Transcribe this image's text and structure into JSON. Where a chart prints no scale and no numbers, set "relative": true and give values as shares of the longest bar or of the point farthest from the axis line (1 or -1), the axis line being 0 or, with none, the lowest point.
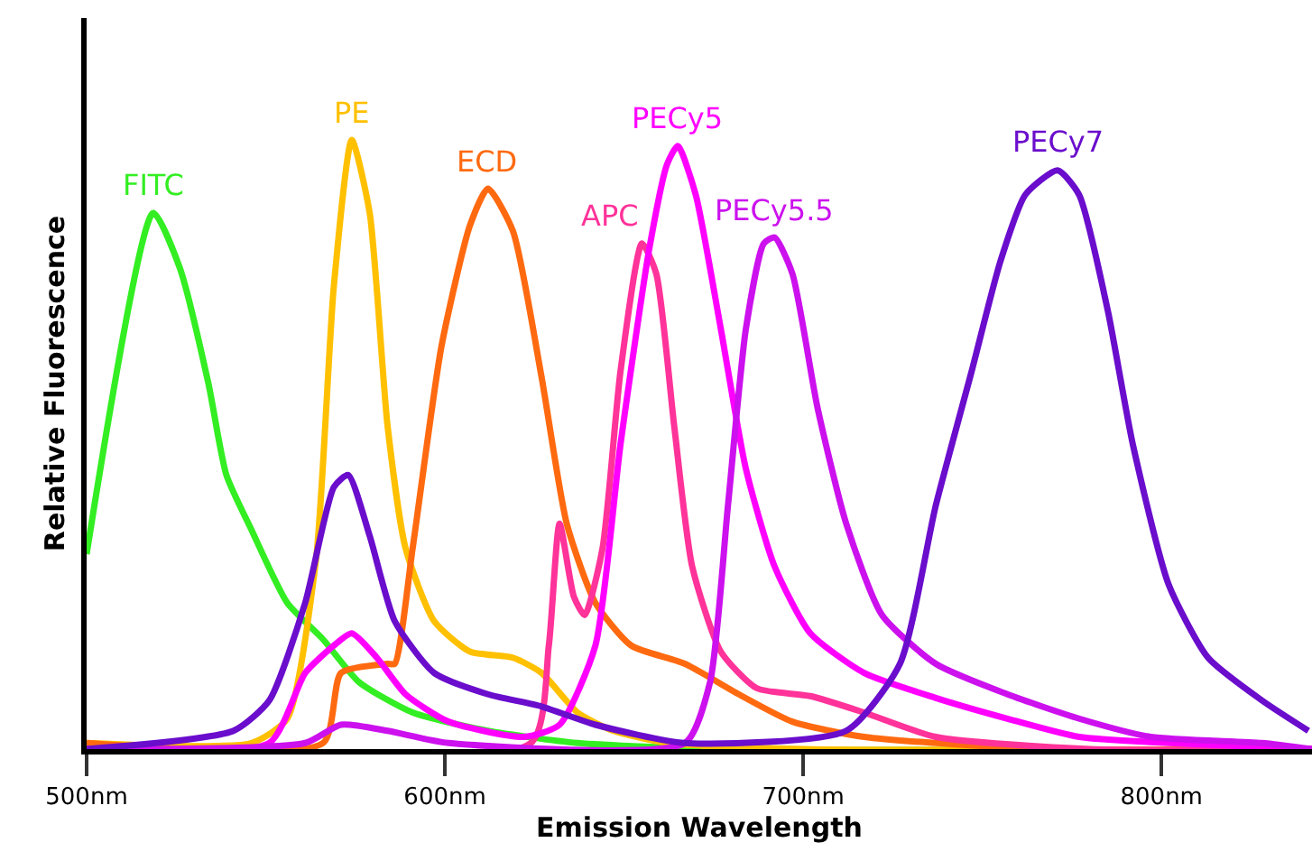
{
  "chart_data": {
    "type": "line",
    "relative": true,
    "xlabel": "Emission Wavelength",
    "ylabel": "Relative Fluorescence",
    "xlim": [
      500,
      842
    ],
    "xticks": [
      {
        "value": 500,
        "label": "500nm"
      },
      {
        "value": 600,
        "label": "600nm"
      },
      {
        "value": 700,
        "label": "700nm"
      },
      {
        "value": 800,
        "label": "800nm"
      }
    ],
    "grid": false,
    "legend": false,
    "marker": "none",
    "line_style": "solid",
    "series": [
      {
        "name": "FITC",
        "color": "#33ee22",
        "x": [
          500,
          518.6,
          526,
          534,
          539,
          546,
          556,
          566,
          576,
          591,
          612,
          637,
          677,
          842
        ],
        "values": [
          0.32,
          0.88,
          0.79,
          0.6,
          0.45,
          0.36,
          0.24,
          0.18,
          0.11,
          0.06,
          0.03,
          0.01,
          0,
          0
        ]
      },
      {
        "name": "PE",
        "color": "#ffc000",
        "x": [
          500,
          546,
          556,
          564,
          569,
          574,
          579,
          584,
          589,
          597,
          607,
          619,
          627,
          637,
          647,
          662,
          700,
          842
        ],
        "values": [
          0.01,
          0.01,
          0.05,
          0.31,
          0.76,
          1.0,
          0.88,
          0.53,
          0.33,
          0.21,
          0.16,
          0.15,
          0.125,
          0.06,
          0.03,
          0.01,
          0,
          0
        ]
      },
      {
        "name": "ECD",
        "color": "#ff6a10",
        "x": [
          500,
          566,
          571,
          584,
          586,
          591,
          599,
          607,
          612,
          619,
          627,
          634,
          642,
          652,
          667,
          682,
          697,
          717,
          767,
          842
        ],
        "values": [
          0.01,
          0.01,
          0.125,
          0.14,
          0.14,
          0.33,
          0.66,
          0.86,
          0.92,
          0.85,
          0.61,
          0.37,
          0.24,
          0.17,
          0.14,
          0.09,
          0.045,
          0.02,
          0,
          0
        ]
      },
      {
        "name": "APC",
        "color": "#ff3399",
        "x": [
          500,
          624,
          629,
          632,
          636,
          639,
          644,
          649,
          655,
          659,
          664,
          669,
          677,
          687,
          702,
          717,
          737,
          780,
          842
        ],
        "values": [
          0,
          0.01,
          0.17,
          0.37,
          0.25,
          0.22,
          0.33,
          0.62,
          0.83,
          0.78,
          0.53,
          0.3,
          0.16,
          0.1,
          0.087,
          0.06,
          0.02,
          0,
          0
        ]
      },
      {
        "name": "PECy5",
        "color": "#ff00ff",
        "x": [
          500,
          551,
          561,
          569,
          574,
          581,
          589,
          601,
          622,
          632,
          642,
          649,
          657,
          662,
          665,
          670,
          677,
          684,
          692,
          702,
          717,
          737,
          757,
          777,
          802,
          842
        ],
        "values": [
          0,
          0.01,
          0.125,
          0.17,
          0.19,
          0.15,
          0.09,
          0.045,
          0.02,
          0.04,
          0.17,
          0.5,
          0.82,
          0.96,
          0.99,
          0.91,
          0.69,
          0.46,
          0.3,
          0.19,
          0.125,
          0.084,
          0.05,
          0.02,
          0.01,
          0
        ]
      },
      {
        "name": "PECy5.5",
        "color": "#cc11ee",
        "x": [
          500,
          561,
          571,
          584,
          601,
          667,
          674,
          679,
          684,
          689,
          692,
          697,
          704,
          712,
          722,
          737,
          757,
          777,
          797,
          828,
          842
        ],
        "values": [
          0,
          0.01,
          0.04,
          0.03,
          0.01,
          0.01,
          0.11,
          0.4,
          0.69,
          0.83,
          0.84,
          0.78,
          0.56,
          0.37,
          0.22,
          0.14,
          0.09,
          0.05,
          0.02,
          0.01,
          0
        ]
      },
      {
        "name": "PECy7",
        "color": "#6a0dcc",
        "x": [
          500,
          541,
          551,
          561,
          569,
          573,
          579,
          586,
          597,
          612,
          627,
          642,
          667,
          712,
          727,
          737,
          747,
          755,
          762,
          771,
          777,
          785,
          792,
          802,
          813,
          828,
          841
        ],
        "values": [
          0,
          0.03,
          0.08,
          0.24,
          0.43,
          0.45,
          0.35,
          0.21,
          0.125,
          0.09,
          0.07,
          0.04,
          0.01,
          0.03,
          0.14,
          0.4,
          0.62,
          0.8,
          0.91,
          0.95,
          0.91,
          0.72,
          0.5,
          0.27,
          0.15,
          0.08,
          0.03
        ]
      }
    ]
  }
}
